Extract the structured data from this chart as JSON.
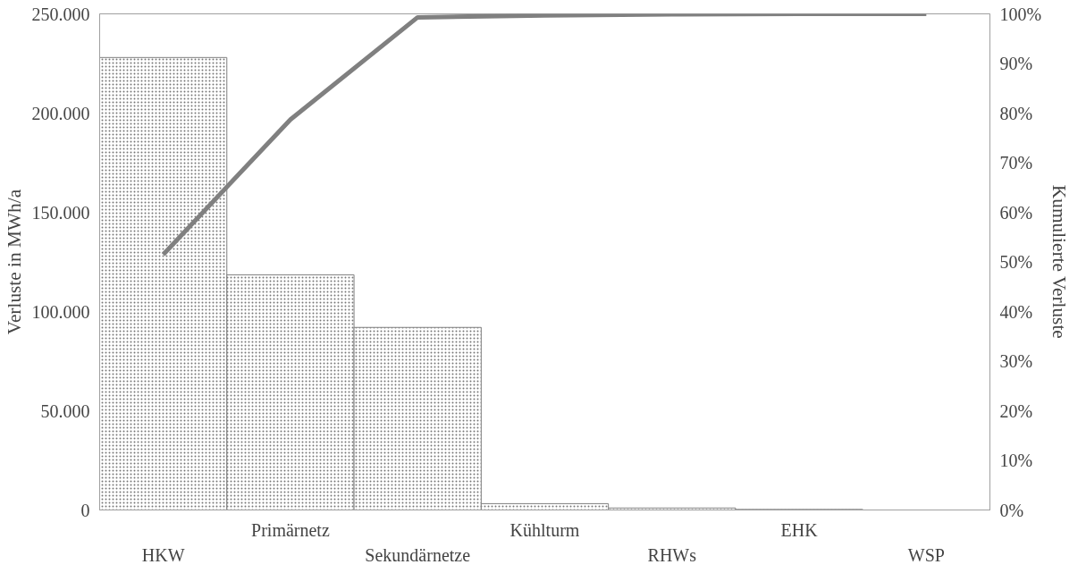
{
  "chart_data": {
    "type": "bar",
    "ylabel": "Verluste in MWh/a",
    "y2label": "Kumulierte Verluste",
    "categories": [
      "HKW",
      "Primärnetz",
      "Sekundärnetze",
      "Kühlturm",
      "RHWs",
      "EHK",
      "WSP"
    ],
    "series": [
      {
        "color": "#ffffff",
        "values": [
          228000,
          118500,
          92000,
          3200,
          1000,
          300,
          null
        ]
      },
      {
        "type": "line",
        "axis": "y2",
        "color": "#808080",
        "values": [
          51.5,
          78.7,
          99.3,
          99.7,
          99.9,
          100,
          100
        ]
      }
    ],
    "ylim": [
      0,
      250000
    ],
    "yticks": [
      {
        "value": 0,
        "label": "0"
      },
      {
        "value": 50000,
        "label": "50.000"
      },
      {
        "value": 100000,
        "label": "100.000"
      },
      {
        "value": 150000,
        "label": "150.000"
      },
      {
        "value": 200000,
        "label": "200.000"
      },
      {
        "value": 250000,
        "label": "250.000"
      }
    ],
    "y2lim": [
      0,
      100
    ],
    "y2ticks": [
      {
        "value": 0,
        "label": "0%"
      },
      {
        "value": 10,
        "label": "10%"
      },
      {
        "value": 20,
        "label": "20%"
      },
      {
        "value": 30,
        "label": "30%"
      },
      {
        "value": 40,
        "label": "40%"
      },
      {
        "value": 50,
        "label": "50%"
      },
      {
        "value": 60,
        "label": "60%"
      },
      {
        "value": 70,
        "label": "70%"
      },
      {
        "value": 80,
        "label": "80%"
      },
      {
        "value": 90,
        "label": "90%"
      },
      {
        "value": 100,
        "label": "100%"
      }
    ],
    "grid": false
  }
}
